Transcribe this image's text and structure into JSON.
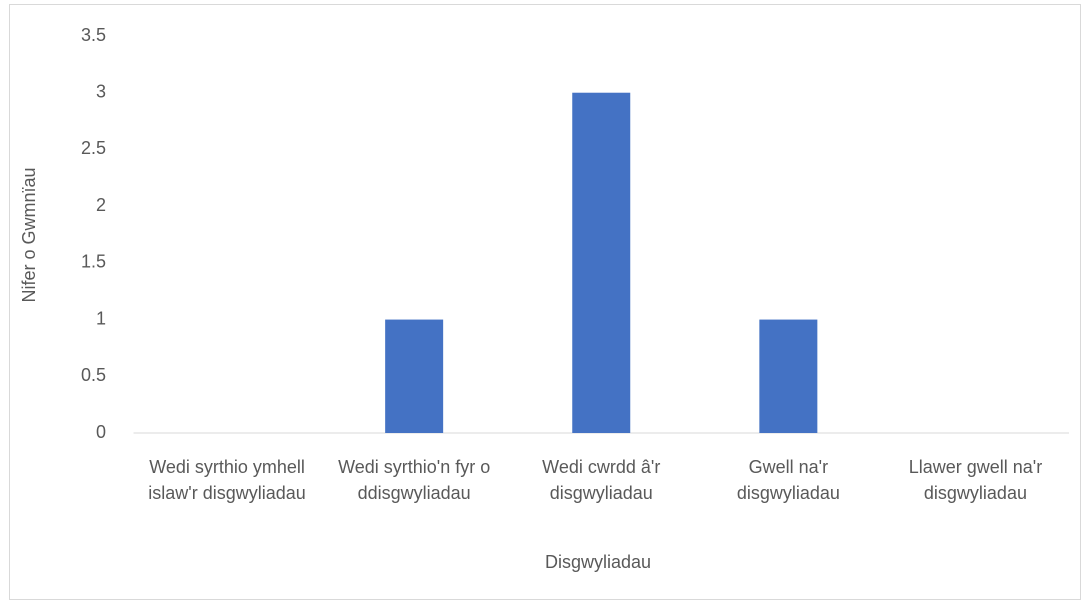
{
  "chart_data": {
    "type": "bar",
    "x_label": "Disgwyliadau",
    "y_label": "Nifer o Gwmnïau",
    "categories": [
      "Wedi syrthio ymhell islaw'r disgwyliadau",
      "Wedi syrthio'n fyr o ddisgwyliadau",
      "Wedi cwrdd â'r disgwyliadau",
      "Gwell na'r disgwyliadau",
      "Llawer gwell na'r disgwyliadau"
    ],
    "values": [
      0,
      1,
      3,
      1,
      0
    ],
    "color": "#4472c4",
    "ylim": [
      0,
      3.5
    ],
    "yticks": [
      0,
      0.5,
      1,
      1.5,
      2,
      2.5,
      3,
      3.5
    ],
    "grid": false
  }
}
